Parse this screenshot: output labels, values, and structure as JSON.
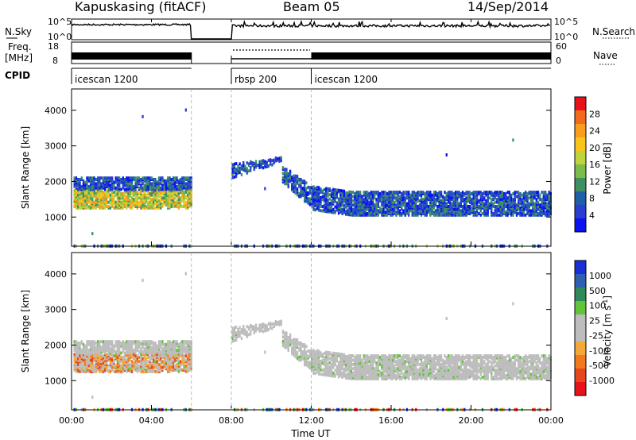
{
  "header": {
    "station": "Kapuskasing (fitACF)",
    "beam": "Beam 05",
    "date": "14/Sep/2014"
  },
  "strip": {
    "nsky_label": "N.Sky",
    "nsky_ticks": [
      "10^5",
      "10^0"
    ],
    "nsearch_label": "N.Search",
    "nsearch_ticks": [
      "10^5",
      "10^0"
    ],
    "freq_label_1": "Freq.",
    "freq_label_2": "[MHz]",
    "freq_ticks": [
      "18",
      "8"
    ],
    "nave_label": "Nave",
    "nave_ticks": [
      "60",
      "0"
    ],
    "cpid_label": "CPID",
    "cpid_segments": [
      {
        "label": "icescan 1200",
        "start_h": 0,
        "end_h": 6
      },
      {
        "label": "rbsp 200",
        "start_h": 8,
        "end_h": 12
      },
      {
        "label": "icescan 1200",
        "start_h": 12,
        "end_h": 24
      }
    ]
  },
  "chart_data": [
    {
      "type": "heatmap",
      "name": "power",
      "ylabel": "Slant Range [km]",
      "xlim_hours": [
        0,
        24
      ],
      "ylim": [
        180,
        4600
      ],
      "yticks": [
        "4000",
        "3000",
        "2000",
        "1000"
      ],
      "colorbar": {
        "label": "Power [dB]",
        "ticks": [
          "28",
          "24",
          "20",
          "16",
          "12",
          "8",
          "4"
        ],
        "colors_top_to_bottom": [
          "#e8131a",
          "#f36a1c",
          "#f99d1c",
          "#f9c51c",
          "#bfd33a",
          "#7dbb4a",
          "#3f8f63",
          "#1f5fa8",
          "#2a3fcf",
          "#0b13f0"
        ]
      },
      "data_gaps_hours": [
        [
          6,
          8
        ]
      ],
      "echo_bands": [
        {
          "t_start": 0.2,
          "t_end": 5.9,
          "range_km": [
            1300,
            2100
          ],
          "level": "moderate"
        },
        {
          "t_start": 8.0,
          "t_end": 11.5,
          "range_km": [
            2200,
            2700
          ],
          "level": "weak"
        },
        {
          "t_start": 11.5,
          "t_end": 23.9,
          "range_km": [
            1000,
            1800
          ],
          "level": "weak-moderate"
        }
      ]
    },
    {
      "type": "heatmap",
      "name": "velocity",
      "ylabel": "Slant Range [km]",
      "xlabel": "Time UT",
      "xticks": [
        "00:00",
        "04:00",
        "08:00",
        "12:00",
        "16:00",
        "20:00",
        "00:00"
      ],
      "xlim_hours": [
        0,
        24
      ],
      "ylim": [
        180,
        4600
      ],
      "yticks": [
        "4000",
        "3000",
        "2000",
        "1000"
      ],
      "colorbar": {
        "label": "Velocity [m s^-1]",
        "ticks": [
          "1000",
          "500",
          "100",
          "25",
          "-25",
          "-100",
          "-500",
          "-1000"
        ],
        "colors_top_to_bottom": [
          "#1a2fd6",
          "#2e5fb0",
          "#2f8a5a",
          "#63c33b",
          "#bdbdbd",
          "#bdbdbd",
          "#f2a93a",
          "#f37a1c",
          "#e6471c",
          "#e8131a"
        ]
      },
      "data_gaps_hours": [
        [
          6,
          8
        ]
      ]
    }
  ]
}
